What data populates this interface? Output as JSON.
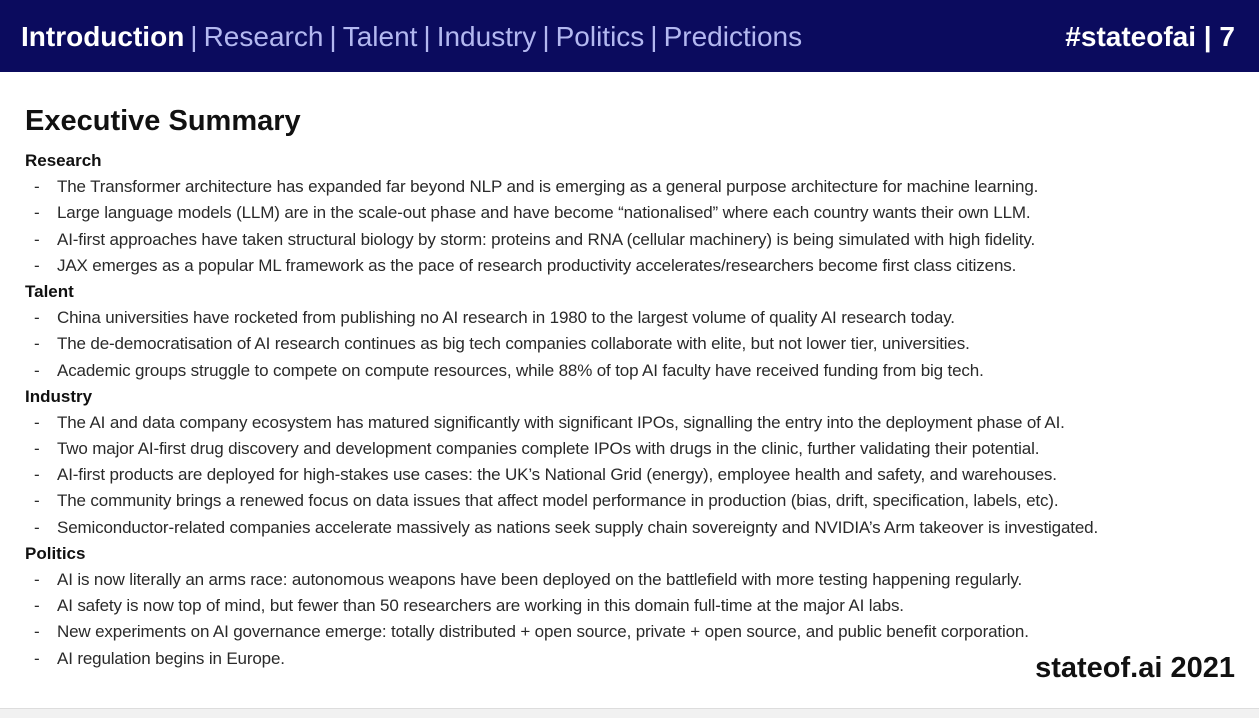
{
  "header": {
    "nav": [
      {
        "label": "Introduction",
        "active": true
      },
      {
        "label": "Research",
        "active": false
      },
      {
        "label": "Talent",
        "active": false
      },
      {
        "label": "Industry",
        "active": false
      },
      {
        "label": "Politics",
        "active": false
      },
      {
        "label": "Predictions",
        "active": false
      }
    ],
    "separator": "|",
    "hashtag": "#stateofai",
    "page_number": "7"
  },
  "title": "Executive Summary",
  "sections": [
    {
      "heading": "Research",
      "bullets": [
        "The Transformer architecture has expanded far beyond NLP and is emerging as a general purpose architecture for machine learning.",
        "Large language models (LLM) are in the scale-out phase and have become “nationalised” where each country wants their own LLM.",
        "AI-first approaches have taken structural biology by storm: proteins and RNA (cellular machinery) is being simulated with high fidelity.",
        "JAX emerges as a popular ML framework as the pace of research productivity accelerates/researchers become first class citizens."
      ]
    },
    {
      "heading": "Talent",
      "bullets": [
        "China universities have rocketed from publishing no AI research in 1980 to the largest volume of quality AI research today.",
        "The de-democratisation of AI research continues as big tech companies collaborate with elite, but not lower tier, universities.",
        "Academic groups struggle to compete on compute resources, while 88% of top AI faculty have received funding from big tech."
      ]
    },
    {
      "heading": "Industry",
      "bullets": [
        "The AI and data company ecosystem has matured significantly with significant IPOs, signalling the entry into the deployment phase of AI.",
        "Two major AI-first drug discovery and development companies complete IPOs with drugs in the clinic, further validating their potential.",
        "AI-first products are deployed for high-stakes use cases: the UK’s National Grid (energy), employee health and safety, and warehouses.",
        "The community brings a renewed focus on data issues that affect model performance in production (bias, drift, specification, labels, etc).",
        "Semiconductor-related companies accelerate massively as nations seek supply chain sovereignty and NVIDIA’s Arm takeover is investigated."
      ]
    },
    {
      "heading": "Politics",
      "bullets": [
        "AI is now literally an arms race: autonomous weapons have been deployed on the battlefield with more testing happening regularly.",
        "AI safety is now top of mind, but fewer than 50 researchers are working in this domain full-time at the major AI labs.",
        "New experiments on AI governance emerge: totally distributed + open source, private + open source, and public benefit corporation.",
        "AI regulation begins in Europe."
      ]
    }
  ],
  "bullet_marker": "-",
  "footer": {
    "brand": "stateof.ai 2021"
  },
  "colors": {
    "header_bg": "#0b0b5e",
    "nav_inactive": "#b3b8f0",
    "text": "#2a2a2a"
  }
}
